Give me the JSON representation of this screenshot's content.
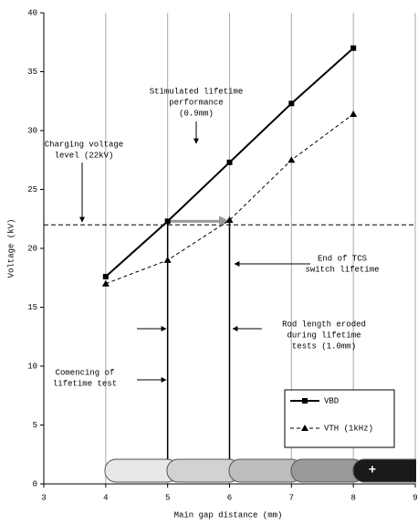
{
  "chart_data": {
    "type": "line",
    "x_label": "Main gap distance (mm)",
    "y_label": "Voltage (kV)",
    "xlim": [
      3,
      9
    ],
    "xticks": [
      3,
      4,
      5,
      6,
      7,
      8,
      9
    ],
    "ylim": [
      0,
      40
    ],
    "yticks": [
      0,
      5,
      10,
      15,
      20,
      25,
      30,
      35,
      40
    ],
    "x": [
      4,
      5,
      6,
      7,
      8
    ],
    "series": [
      {
        "name": "VBD",
        "color": "#000000",
        "values": [
          17.6,
          22.3,
          27.3,
          32.3,
          37.0
        ]
      },
      {
        "name": "VTH (1kHz)",
        "color": "#000000",
        "values": [
          17.0,
          19.0,
          22.4,
          27.5,
          31.4
        ]
      }
    ],
    "hline": 22,
    "grid": true,
    "legend": "lower right",
    "annotations": [
      [
        "Stimulated lifetime",
        "performance",
        "(0.9mm)"
      ],
      [
        "Charging voltage",
        "level (22kV)"
      ],
      [
        "End of TCS",
        "switch lifetime"
      ],
      [
        "Rod length eroded",
        "during lifetime",
        "tests (1.0mm)"
      ],
      [
        "Comencing of",
        "lifetime test"
      ]
    ],
    "rod_label": "+"
  }
}
